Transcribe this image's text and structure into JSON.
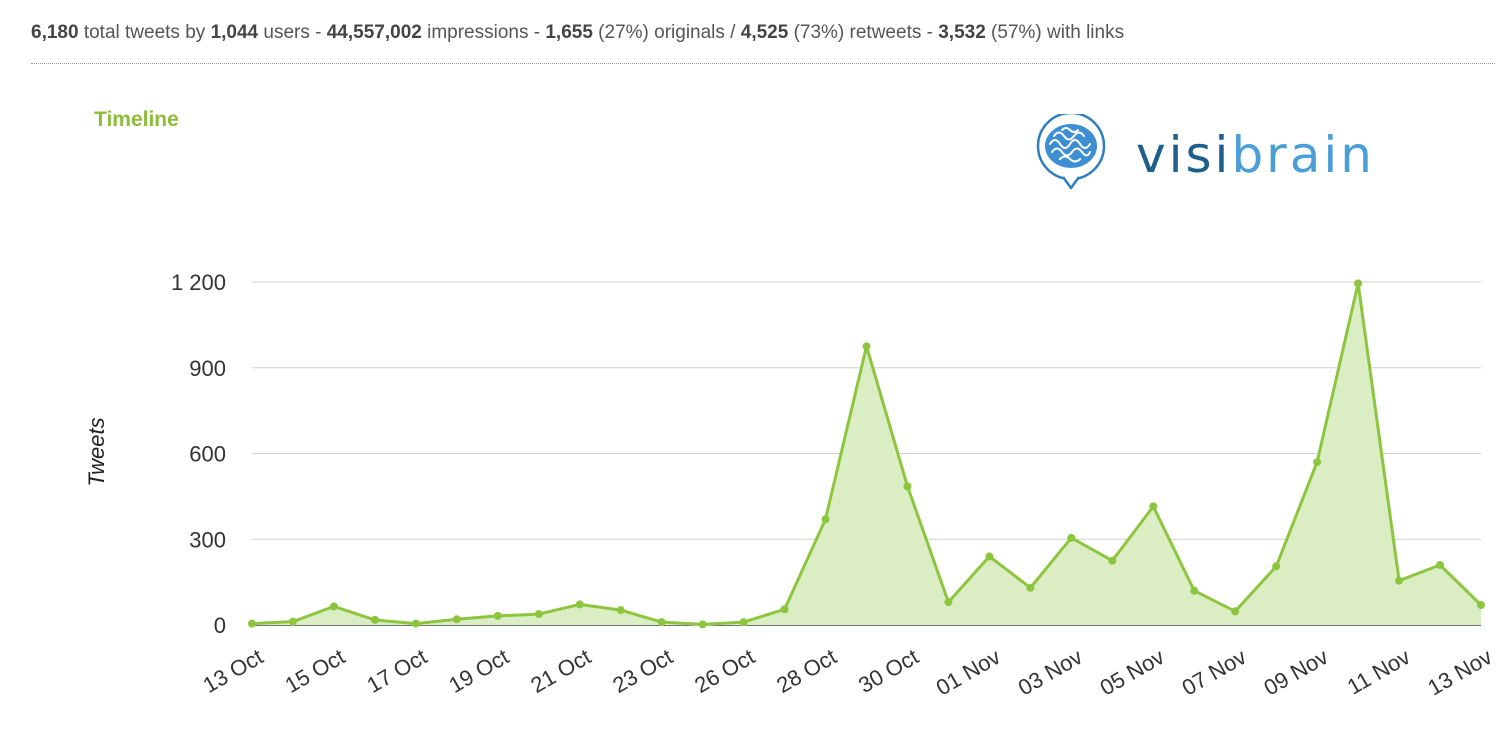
{
  "summary": {
    "total_tweets": "6,180",
    "t1": " total tweets by ",
    "users": "1,044",
    "t2": " users - ",
    "impressions": "44,557,002",
    "t3": " impressions - ",
    "originals": "1,655",
    "t4": " (27%) originals / ",
    "retweets": "4,525",
    "t5": " (73%) retweets - ",
    "links": "3,532",
    "t6": " (57%) with links"
  },
  "section_title": "Timeline",
  "logo": {
    "text_dark": "visi",
    "text_light": "brain",
    "icon": "brain-speech-bubble-icon"
  },
  "colors": {
    "line": "#8cc63f",
    "fill": "#dbedc2",
    "accent": "#8cbc3a",
    "logo_dark": "#1f5f8b",
    "logo_light": "#4a9fd8"
  },
  "chart_data": {
    "type": "area",
    "title": "Timeline",
    "ylabel": "Tweets",
    "xlabel": "",
    "ylim": [
      0,
      1200
    ],
    "yticks": [
      0,
      300,
      600,
      900,
      1200
    ],
    "ytick_labels": [
      "0",
      "300",
      "600",
      "900",
      "1 200"
    ],
    "grid": true,
    "x_labels": [
      "13 Oct",
      "15 Oct",
      "17 Oct",
      "19 Oct",
      "21 Oct",
      "23 Oct",
      "26 Oct",
      "28 Oct",
      "30 Oct",
      "01 Nov",
      "03 Nov",
      "05 Nov",
      "07 Nov",
      "09 Nov",
      "11 Nov",
      "13 Nov"
    ],
    "series": [
      {
        "values": [
          5,
          12,
          65,
          18,
          5,
          20,
          32,
          38,
          72,
          52,
          10,
          2,
          10,
          55,
          370,
          975,
          485,
          80,
          240,
          130,
          305,
          225,
          415,
          120,
          48,
          205,
          570,
          1195,
          155,
          210,
          70
        ]
      }
    ]
  }
}
